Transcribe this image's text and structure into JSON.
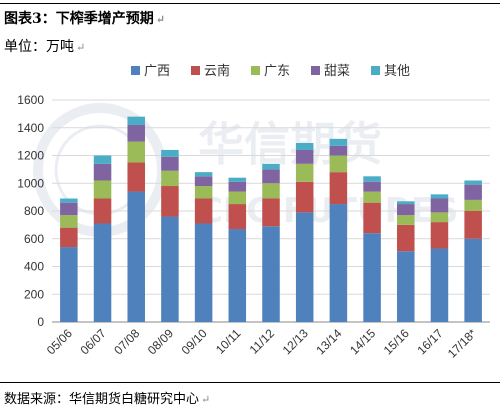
{
  "title": "图表3：下榨季增产预期",
  "unit": "单位：万吨",
  "source": "数据来源：华信期货白糖研究中心",
  "watermark": {
    "cn": "华信期货",
    "en": "CFC FUTURES"
  },
  "chart_data": {
    "type": "bar",
    "stacked": true,
    "categories": [
      "05/06",
      "06/07",
      "07/08",
      "08/09",
      "09/10",
      "10/11",
      "11/12",
      "12/13",
      "13/14",
      "14/15",
      "15/16",
      "16/17",
      "17/18*"
    ],
    "ylim": [
      0,
      1600
    ],
    "yticks": [
      0,
      200,
      400,
      600,
      800,
      1000,
      1200,
      1400,
      1600
    ],
    "grid": true,
    "legend_position": "top",
    "series": [
      {
        "name": "广西",
        "color": "#4F81BD",
        "values": [
          540,
          710,
          940,
          760,
          710,
          670,
          690,
          790,
          850,
          640,
          510,
          530,
          600
        ]
      },
      {
        "name": "云南",
        "color": "#C0504D",
        "values": [
          140,
          180,
          210,
          220,
          180,
          180,
          200,
          220,
          230,
          220,
          190,
          190,
          200
        ]
      },
      {
        "name": "广东",
        "color": "#9BBB59",
        "values": [
          90,
          130,
          150,
          110,
          90,
          90,
          110,
          130,
          120,
          80,
          70,
          70,
          80
        ]
      },
      {
        "name": "甜菜",
        "color": "#8064A2",
        "values": [
          90,
          120,
          120,
          100,
          70,
          70,
          100,
          100,
          70,
          70,
          80,
          100,
          110
        ]
      },
      {
        "name": "其他",
        "color": "#4BACC6",
        "values": [
          30,
          60,
          60,
          50,
          30,
          30,
          40,
          50,
          50,
          40,
          20,
          30,
          30
        ]
      }
    ]
  }
}
